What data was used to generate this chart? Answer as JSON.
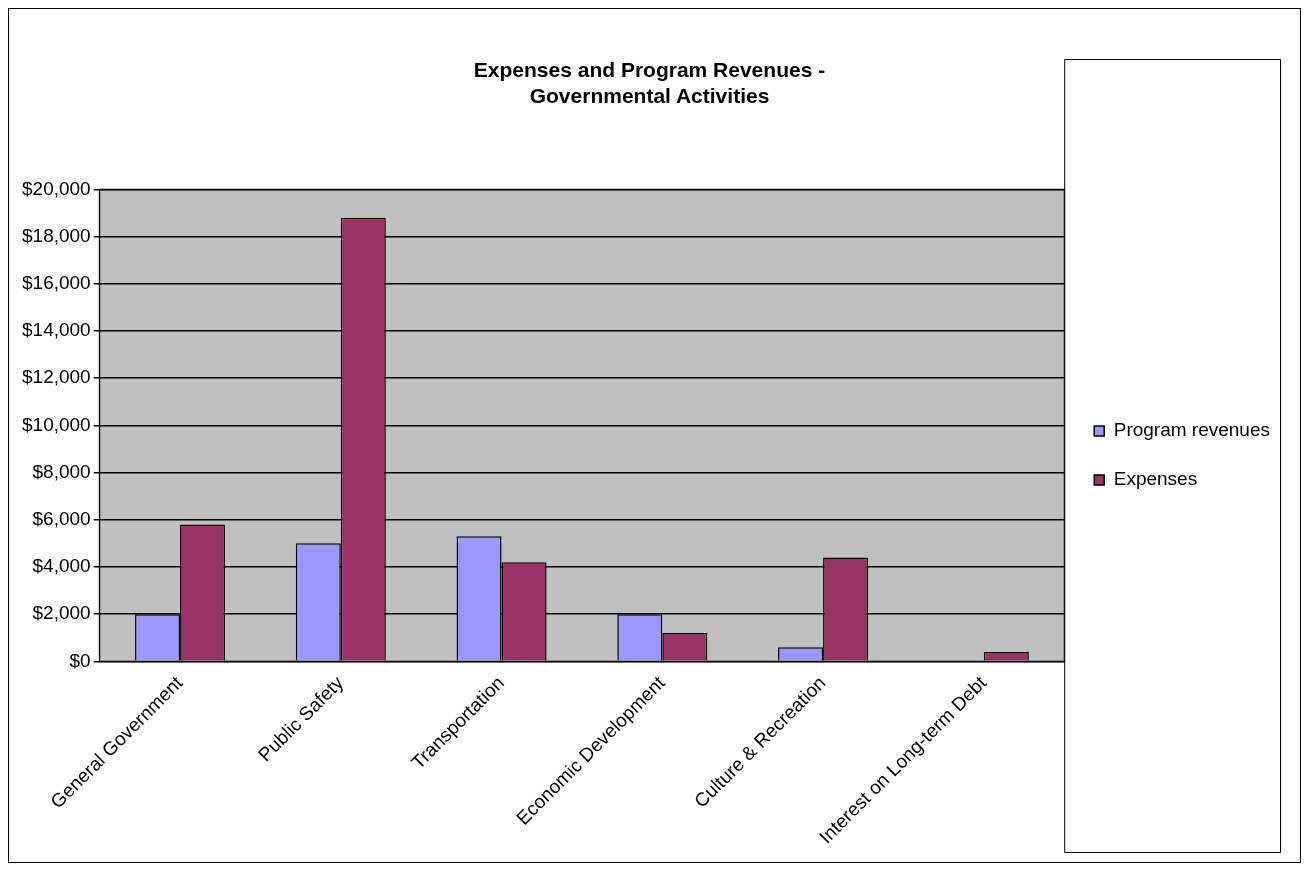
{
  "chart_data": {
    "type": "bar",
    "title": "Expenses and Program Revenues - Governmental Activities",
    "categories": [
      "General Government",
      "Public Safety",
      "Transportation",
      "Economic Development",
      "Culture & Recreation",
      "Interest on Long-term Debt"
    ],
    "series": [
      {
        "name": "Program revenues",
        "color": "#9999ff",
        "values": [
          2000,
          5000,
          5300,
          2000,
          600,
          0
        ]
      },
      {
        "name": "Expenses",
        "color": "#993366",
        "values": [
          5800,
          18800,
          4200,
          1200,
          4400,
          400
        ]
      }
    ],
    "ylim": [
      0,
      20000
    ],
    "yticks": [
      {
        "value": 0,
        "label": "$0"
      },
      {
        "value": 2000,
        "label": "$2,000"
      },
      {
        "value": 4000,
        "label": "$4,000"
      },
      {
        "value": 6000,
        "label": "$6,000"
      },
      {
        "value": 8000,
        "label": "$8,000"
      },
      {
        "value": 10000,
        "label": "$10,000"
      },
      {
        "value": 12000,
        "label": "$12,000"
      },
      {
        "value": 14000,
        "label": "$14,000"
      },
      {
        "value": 16000,
        "label": "$16,000"
      },
      {
        "value": 18000,
        "label": "$18,000"
      },
      {
        "value": 20000,
        "label": "$20,000"
      }
    ],
    "grid": "y",
    "legend": "right"
  }
}
